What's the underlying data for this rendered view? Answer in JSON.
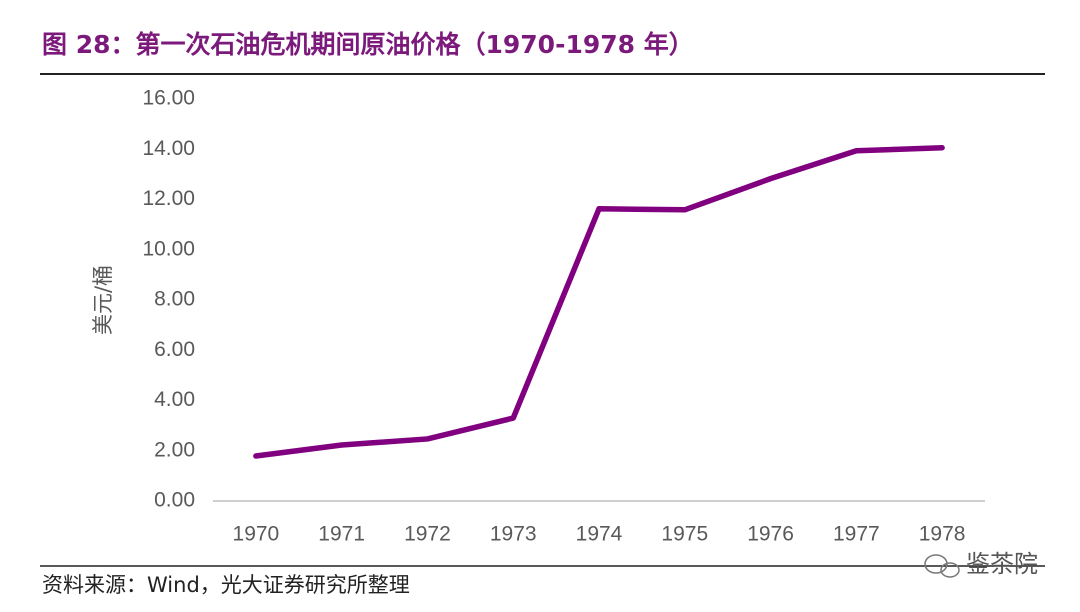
{
  "chart_data": {
    "type": "line",
    "title": "图 28：第一次石油危机期间原油价格（1970-1978 年）",
    "y_label": "美元/桶",
    "source": "资料来源：Wind，光大证券研究所整理",
    "watermark": "鉴茶院",
    "categories": [
      "1970",
      "1971",
      "1972",
      "1973",
      "1974",
      "1975",
      "1976",
      "1977",
      "1978"
    ],
    "series": [
      {
        "name": "原油价格",
        "color": "#800080",
        "values": [
          1.79,
          2.23,
          2.47,
          3.3,
          11.63,
          11.59,
          12.83,
          13.94,
          14.06
        ]
      }
    ],
    "ylim": [
      0,
      16
    ],
    "yticks": [
      {
        "value": 0,
        "label": "0.00"
      },
      {
        "value": 2,
        "label": "2.00"
      },
      {
        "value": 4,
        "label": "4.00"
      },
      {
        "value": 6,
        "label": "6.00"
      },
      {
        "value": 8,
        "label": "8.00"
      },
      {
        "value": 10,
        "label": "10.00"
      },
      {
        "value": 12,
        "label": "12.00"
      },
      {
        "value": 14,
        "label": "14.00"
      },
      {
        "value": 16,
        "label": "16.00"
      }
    ],
    "grid": false
  }
}
